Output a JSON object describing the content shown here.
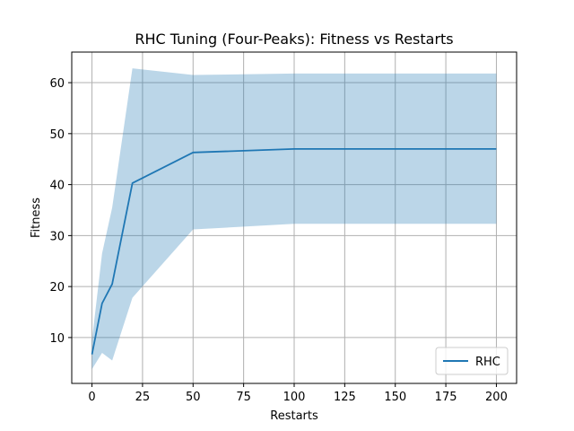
{
  "chart_data": {
    "type": "line",
    "title": "RHC Tuning (Four-Peaks): Fitness vs Restarts",
    "xlabel": "Restarts",
    "ylabel": "Fitness",
    "xlim": [
      -10,
      210
    ],
    "ylim": [
      1,
      66
    ],
    "xticks": [
      0,
      25,
      50,
      75,
      100,
      125,
      150,
      175,
      200
    ],
    "yticks": [
      10,
      20,
      30,
      40,
      50,
      60
    ],
    "grid": true,
    "legend": {
      "position": "lower-right",
      "entries": [
        "RHC"
      ]
    },
    "series": [
      {
        "name": "RHC",
        "color": "#1f77b4",
        "band_color": "#1f77b4",
        "x": [
          0,
          5,
          10,
          20,
          50,
          100,
          200
        ],
        "y": [
          6.7,
          16.7,
          20.5,
          40.3,
          46.3,
          47.0,
          47.0
        ],
        "upper": [
          9.5,
          26.5,
          35.5,
          62.8,
          61.5,
          61.8,
          61.8
        ],
        "lower": [
          3.8,
          7.0,
          5.5,
          17.8,
          31.2,
          32.3,
          32.3
        ]
      }
    ]
  }
}
